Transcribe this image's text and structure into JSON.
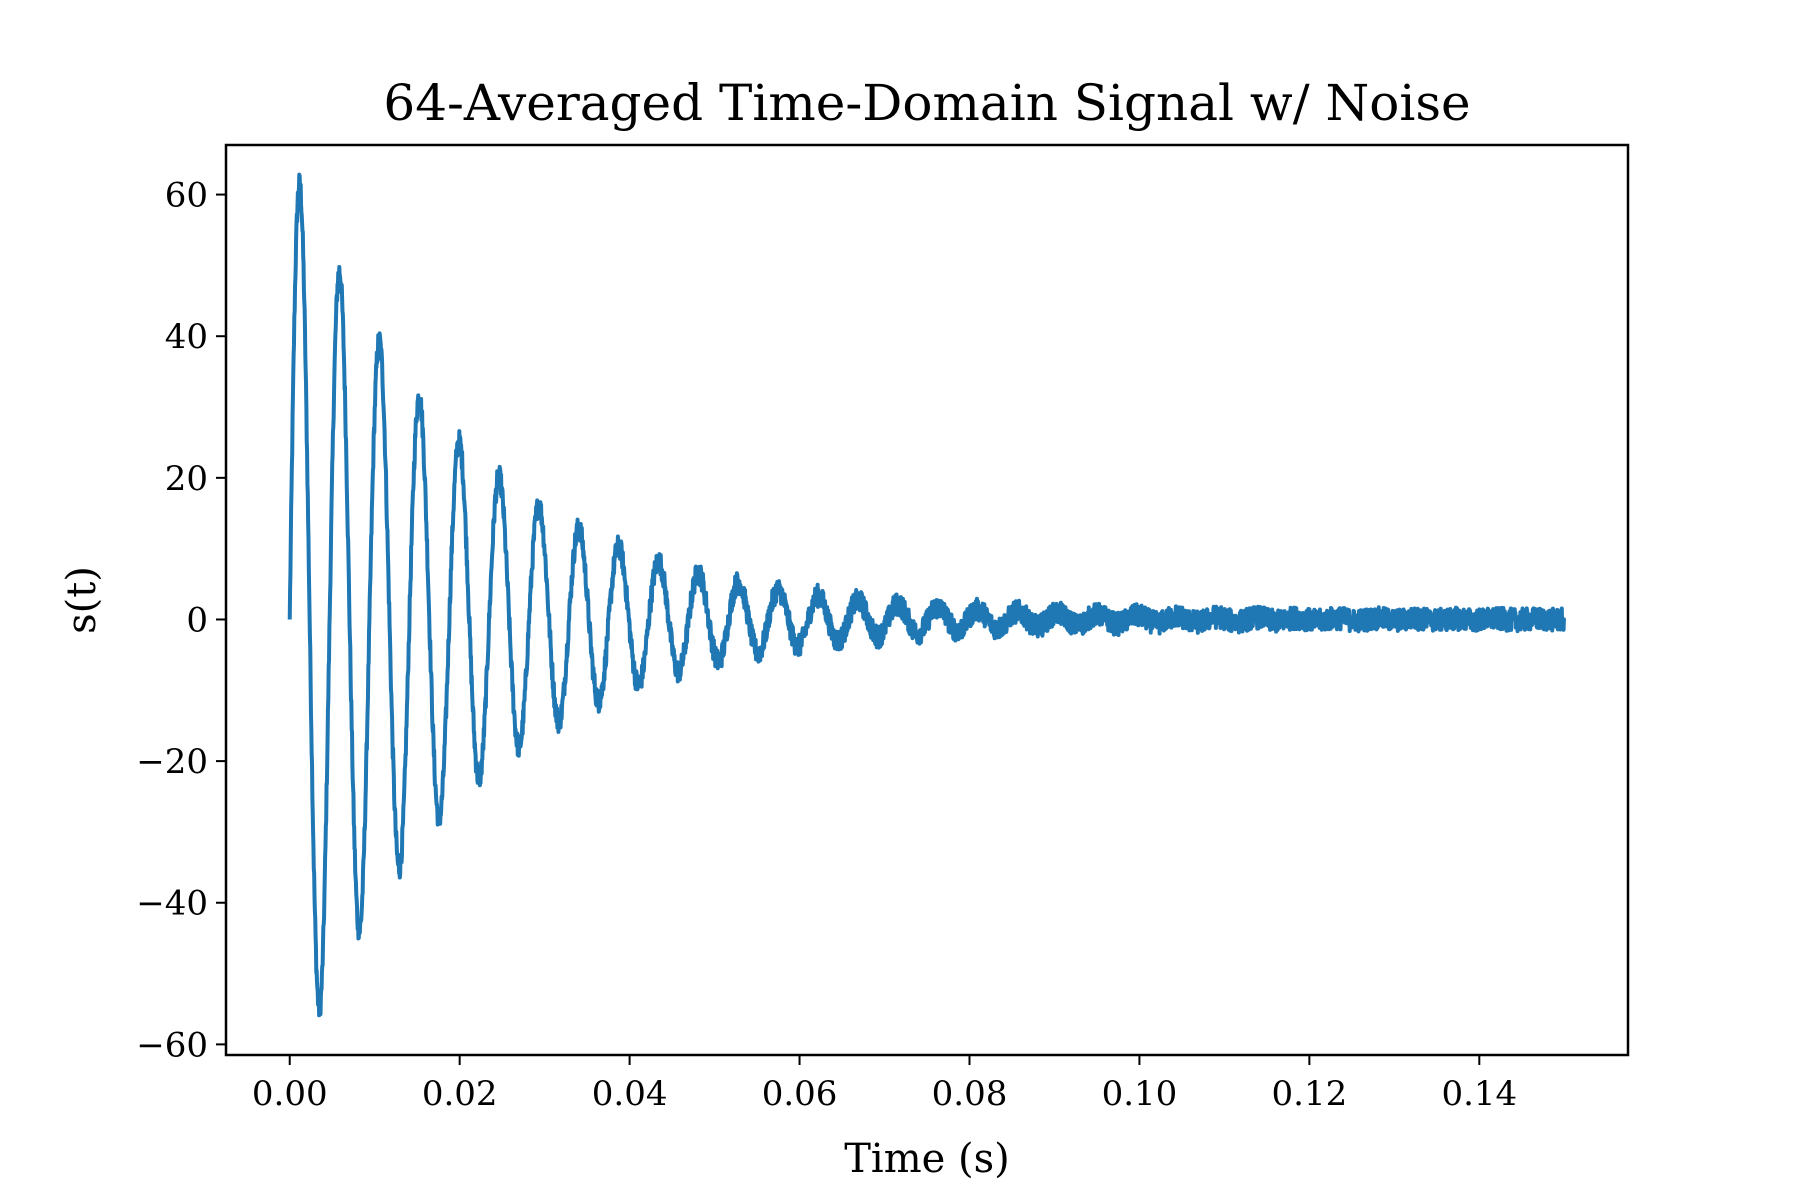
{
  "chart_data": {
    "type": "line",
    "title": "64-Averaged Time-Domain Signal w/ Noise",
    "xlabel": "Time (s)",
    "ylabel": "s(t)",
    "xlim": [
      -0.0075,
      0.1575
    ],
    "ylim": [
      -61.5,
      67
    ],
    "xticks": [
      0.0,
      0.02,
      0.04,
      0.06,
      0.08,
      0.1,
      0.12,
      0.14
    ],
    "xtick_labels": [
      "0.00",
      "0.02",
      "0.04",
      "0.06",
      "0.08",
      "0.10",
      "0.12",
      "0.14"
    ],
    "yticks": [
      -60,
      -40,
      -20,
      0,
      20,
      40,
      60
    ],
    "ytick_labels": [
      "−60",
      "−40",
      "−20",
      "0",
      "20",
      "40",
      "60"
    ],
    "grid": false,
    "series": [
      {
        "name": "s(t)",
        "color": "#1f77b4",
        "model": "damped sinusoid plus noise",
        "t_start": 0.0,
        "t_end": 0.15,
        "amplitude": 65,
        "frequency_hz": 213,
        "decay_time_s": 0.021,
        "noise_amplitude": 1.6,
        "samples": 3600,
        "peaks": [
          {
            "t": 0.001,
            "s": 61
          },
          {
            "t": 0.0035,
            "s": -55
          },
          {
            "t": 0.006,
            "s": 49
          },
          {
            "t": 0.0082,
            "s": -44
          },
          {
            "t": 0.0105,
            "s": 38
          },
          {
            "t": 0.013,
            "s": -35
          },
          {
            "t": 0.0153,
            "s": 31
          },
          {
            "t": 0.0177,
            "s": -27
          },
          {
            "t": 0.02,
            "s": 25
          },
          {
            "t": 0.0225,
            "s": -23
          },
          {
            "t": 0.0248,
            "s": 20
          },
          {
            "t": 0.0272,
            "s": -17
          },
          {
            "t": 0.0295,
            "s": 16
          },
          {
            "t": 0.032,
            "s": -14
          },
          {
            "t": 0.0343,
            "s": 13
          },
          {
            "t": 0.0367,
            "s": -11
          },
          {
            "t": 0.039,
            "s": 10
          },
          {
            "t": 0.0415,
            "s": -10
          },
          {
            "t": 0.0437,
            "s": 9
          },
          {
            "t": 0.0462,
            "s": -8
          },
          {
            "t": 0.0485,
            "s": 7
          },
          {
            "t": 0.051,
            "s": -7
          },
          {
            "t": 0.053,
            "s": 6
          },
          {
            "t": 0.0555,
            "s": -6
          },
          {
            "t": 0.058,
            "s": 5
          },
          {
            "t": 0.06,
            "s": -5
          }
        ]
      }
    ]
  }
}
